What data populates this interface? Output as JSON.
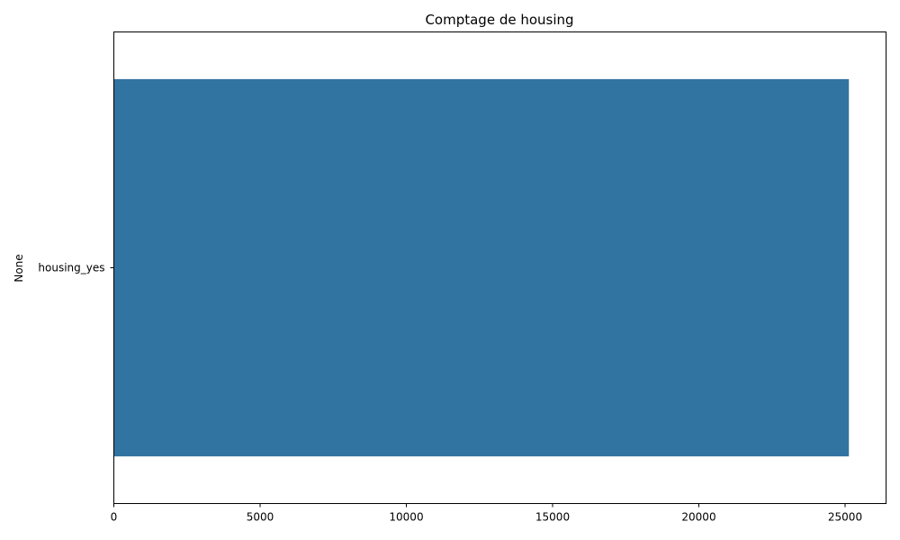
{
  "chart_data": {
    "type": "bar",
    "orientation": "horizontal",
    "title": "Comptage de housing",
    "xlabel": "",
    "ylabel": "None",
    "categories": [
      "housing_yes"
    ],
    "values": [
      25130
    ],
    "xlim": [
      0,
      26400
    ],
    "xticks": [
      0,
      5000,
      10000,
      15000,
      20000,
      25000
    ],
    "grid": false,
    "legend": "none",
    "bar_color": "#3274a1"
  }
}
